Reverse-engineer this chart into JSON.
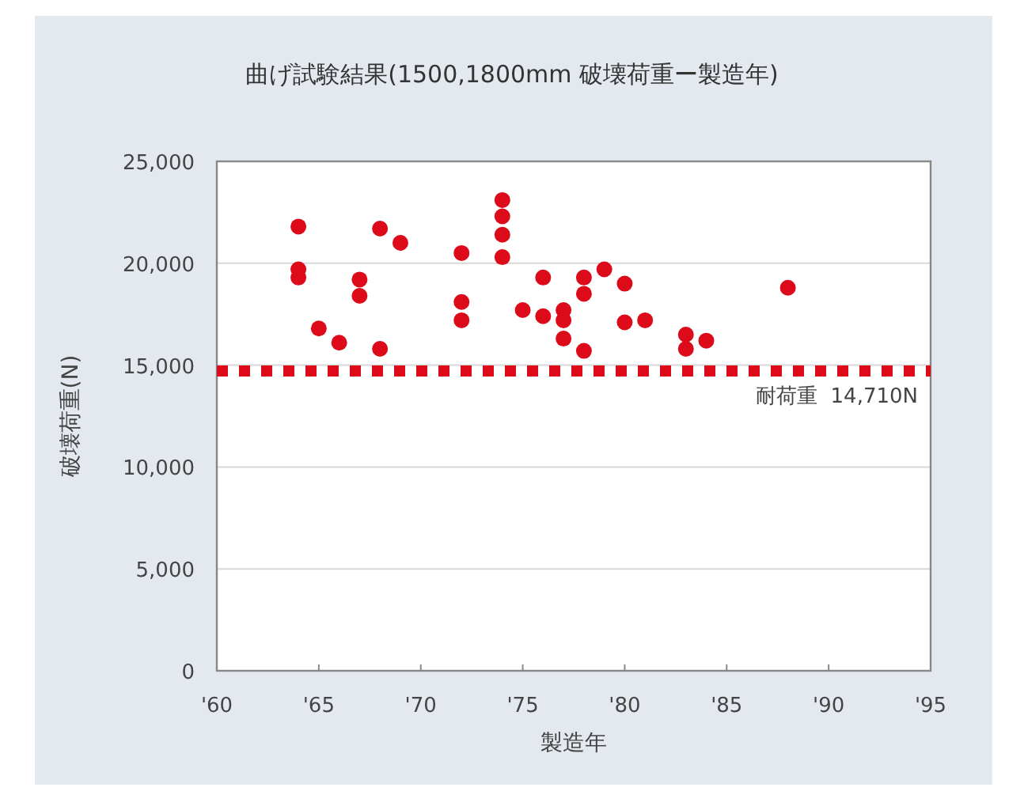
{
  "chart_data": {
    "type": "scatter",
    "title": "曲げ試験結果(1500,1800mm 破壊荷重ー製造年)",
    "xlabel": "製造年",
    "ylabel": "破壊荷重(N)",
    "xlim": [
      1960,
      1995
    ],
    "xticks": [
      {
        "value": 1960,
        "label": "'60"
      },
      {
        "value": 1965,
        "label": "'65"
      },
      {
        "value": 1970,
        "label": "'70"
      },
      {
        "value": 1975,
        "label": "'75"
      },
      {
        "value": 1980,
        "label": "'80"
      },
      {
        "value": 1985,
        "label": "'85"
      },
      {
        "value": 1990,
        "label": "'90"
      },
      {
        "value": 1995,
        "label": "'95"
      }
    ],
    "ylim": [
      0,
      25000
    ],
    "yticks": [
      0,
      {
        "value": 5000,
        "label": "5,000"
      },
      {
        "value": 10000,
        "label": "10,000"
      },
      {
        "value": 15000,
        "label": "15,000"
      },
      {
        "value": 20000,
        "label": "20,000"
      },
      {
        "value": 25000,
        "label": "25,000"
      }
    ],
    "grid": "y",
    "marker": "circle",
    "series": [
      {
        "color": "#dd0a1a",
        "x": [
          1964,
          1964,
          1964,
          1965,
          1966,
          1967,
          1967,
          1968,
          1968,
          1969,
          1972,
          1972,
          1972,
          1974,
          1974,
          1974,
          1974,
          1975,
          1976,
          1976,
          1977,
          1977,
          1977,
          1978,
          1978,
          1978,
          1979,
          1980,
          1980,
          1981,
          1983,
          1983,
          1984,
          1988
        ],
        "values": [
          21800,
          19700,
          19300,
          16800,
          16100,
          19200,
          18400,
          21700,
          15800,
          21000,
          20500,
          18100,
          17200,
          23100,
          22300,
          21400,
          20300,
          17700,
          19300,
          17400,
          17700,
          17200,
          16300,
          19300,
          18500,
          15700,
          19700,
          19000,
          17100,
          17200,
          16500,
          15800,
          16200,
          18800
        ]
      }
    ],
    "ref_lines": [
      {
        "axis": "y",
        "value": 14710,
        "label": "耐荷重  14,710N",
        "color": "#dd0a1a",
        "line_style": "dotted"
      }
    ]
  }
}
